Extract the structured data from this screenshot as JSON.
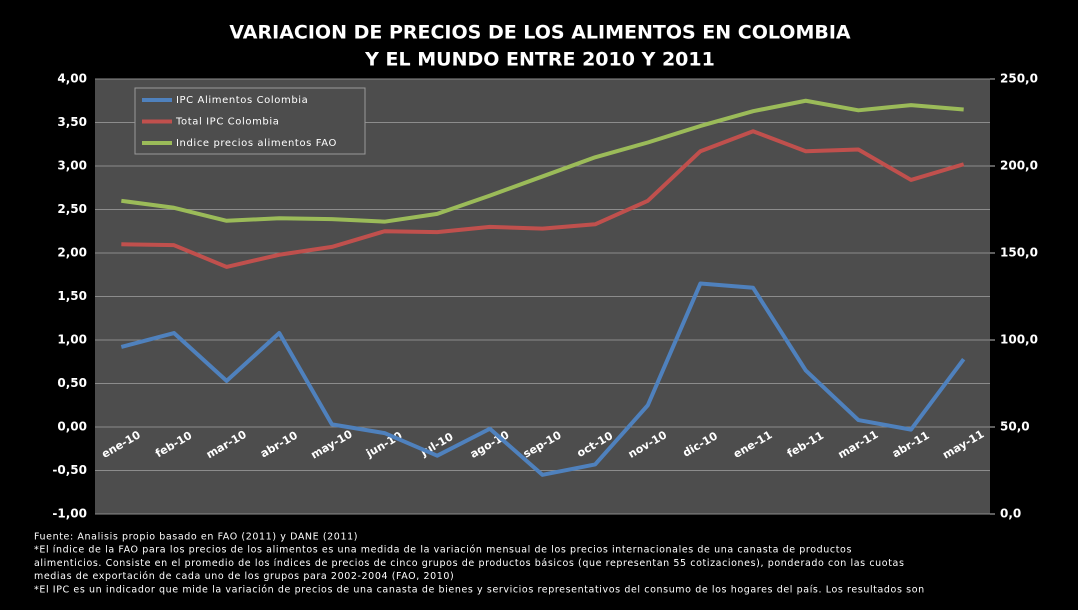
{
  "chart_data": {
    "type": "line",
    "title": [
      "VARIACION DE PRECIOS DE LOS ALIMENTOS EN COLOMBIA",
      "Y EL MUNDO ENTRE 2010 Y 2011"
    ],
    "categories": [
      "ene-10",
      "feb-10",
      "mar-10",
      "abr-10",
      "may-10",
      "jun-10",
      "jul-10",
      "ago-10",
      "sep-10",
      "oct-10",
      "nov-10",
      "dic-10",
      "ene-11",
      "feb-11",
      "mar-11",
      "abr-11",
      "may-11"
    ],
    "series": [
      {
        "name": "IPC Alimentos Colombia",
        "color": "#4f81bd",
        "axis": "y",
        "values": [
          0.92,
          1.08,
          0.53,
          1.08,
          0.03,
          -0.07,
          -0.33,
          -0.02,
          -0.55,
          -0.43,
          0.25,
          1.65,
          1.6,
          0.65,
          0.08,
          -0.03,
          0.78
        ]
      },
      {
        "name": "Total IPC Colombia",
        "color": "#c0504d",
        "axis": "y",
        "values": [
          2.1,
          2.09,
          1.84,
          1.98,
          2.07,
          2.25,
          2.24,
          2.3,
          2.28,
          2.33,
          2.6,
          3.17,
          3.4,
          3.17,
          3.19,
          2.84,
          3.02
        ]
      },
      {
        "name": "Indice precios alimentos FAO",
        "color": "#9bbb59",
        "axis": "y2",
        "values": [
          180,
          176,
          168.5,
          170,
          169.5,
          168,
          172.5,
          183,
          194,
          205,
          213.5,
          223,
          231.5,
          237.5,
          232,
          235,
          232.5
        ]
      }
    ],
    "ylim": [
      -1,
      4
    ],
    "yticks": [
      {
        "value": -1,
        "label": "-1,00"
      },
      {
        "value": -0.5,
        "label": "-0,50"
      },
      {
        "value": 0,
        "label": "0,00"
      },
      {
        "value": 0.5,
        "label": "0,50"
      },
      {
        "value": 1,
        "label": "1,00"
      },
      {
        "value": 1.5,
        "label": "1,50"
      },
      {
        "value": 2,
        "label": "2,00"
      },
      {
        "value": 2.5,
        "label": "2,50"
      },
      {
        "value": 3,
        "label": "3,00"
      },
      {
        "value": 3.5,
        "label": "3,50"
      },
      {
        "value": 4,
        "label": "4,00"
      }
    ],
    "y2lim": [
      0,
      250
    ],
    "y2ticks": [
      {
        "value": 0,
        "label": "0,0"
      },
      {
        "value": 50,
        "label": "50,0"
      },
      {
        "value": 100,
        "label": "100,0"
      },
      {
        "value": 150,
        "label": "150,0"
      },
      {
        "value": 200,
        "label": "200,0"
      },
      {
        "value": 250,
        "label": "250,0"
      }
    ],
    "grid": true,
    "legend": "top-left",
    "notes": [
      "Fuente: Analisis propio basado en FAO (2011) y DANE (2011)",
      "*El índice de la FAO para los precios de los alimentos es una medida de la variación mensual de los precios internacionales de una canasta de productos",
      "alimenticios. Consiste en el promedio de los índices de precios de cinco grupos de productos básicos (que representan 55 cotizaciones), ponderado con las cuotas",
      "medias de exportación de cada uno de los grupos para 2002-2004 (FAO, 2010)",
      "*El IPC es un indicador que mide la variación de precios de una canasta de bienes y servicios representativos del consumo de los hogares del país. Los resultados son"
    ]
  }
}
